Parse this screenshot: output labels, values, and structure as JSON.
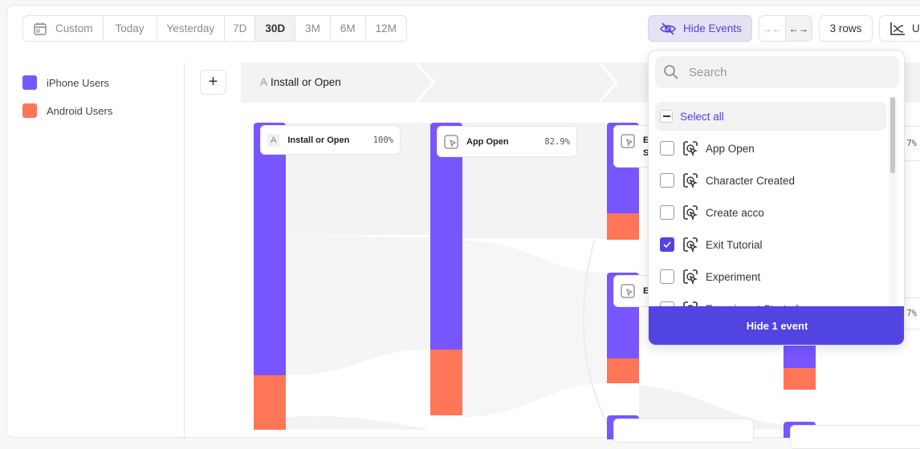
{
  "date_range": {
    "options": [
      "Custom",
      "Today",
      "Yesterday",
      "7D",
      "30D",
      "3M",
      "6M",
      "12M"
    ],
    "selected": "30D"
  },
  "toolbar": {
    "hide_events": "Hide Events",
    "rows": "3 rows",
    "chart_type_partial": "U"
  },
  "legend": [
    {
      "label": "iPhone Users",
      "color": "#7856ff"
    },
    {
      "label": "Android Users",
      "color": "#ff7557"
    }
  ],
  "path": {
    "step1_letter": "A",
    "step1_label": "Install or Open"
  },
  "nodes": [
    {
      "badge": "A",
      "label": "Install or Open",
      "pct": "100%"
    },
    {
      "label": "App Open",
      "pct": "82.9%"
    },
    {
      "label_partial": "E",
      "label_partial2": "S"
    },
    {
      "label_partial": "E"
    },
    {
      "pct_partial": ".7%"
    },
    {
      "pct_partial": ".7%"
    }
  ],
  "dropdown": {
    "search_placeholder": "Search",
    "select_all": "Select all",
    "items": [
      {
        "label": "App Open",
        "checked": false
      },
      {
        "label": "Character Created",
        "checked": false
      },
      {
        "label": "Create acco",
        "checked": false
      },
      {
        "label": "Exit Tutorial",
        "checked": true
      },
      {
        "label": "Experiment",
        "checked": false
      },
      {
        "label": "Experiment Started",
        "checked": false
      }
    ],
    "apply": "Hide 1 event"
  },
  "colors": {
    "iphone": "#7856ff",
    "android": "#ff7557",
    "accent": "#5144e0"
  }
}
